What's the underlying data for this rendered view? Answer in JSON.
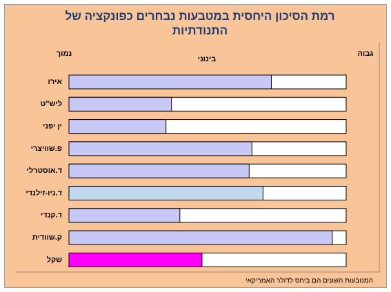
{
  "chart_data": {
    "type": "bar",
    "title": "רמת הסיכון היחסית במטבעות נבחרים כפונקציה של התנודתיות",
    "scale_labels": [
      "נמוך",
      "בינוני",
      "גבוה"
    ],
    "categories": [
      "אירו",
      "ליש\"ט",
      "ין יפני",
      "פ.שוויצרי",
      "ד.אוסטרלי",
      "ד.ניו-זילנדי",
      "ד.קנדי",
      "ק.שוודית",
      "שקל"
    ],
    "values": [
      73,
      37,
      35,
      66,
      65,
      70,
      40,
      95,
      48
    ],
    "colors": [
      "#c8c8f6",
      "#c8c8f6",
      "#c8c8f6",
      "#c8c8f6",
      "#c8c8f6",
      "#c2d8ee",
      "#c8c8f6",
      "#c8c8f6",
      "#ff00ff"
    ],
    "xlim": [
      0,
      100
    ],
    "note": "המטבעות השונים הם ביחס לדולר האמריקאי"
  }
}
